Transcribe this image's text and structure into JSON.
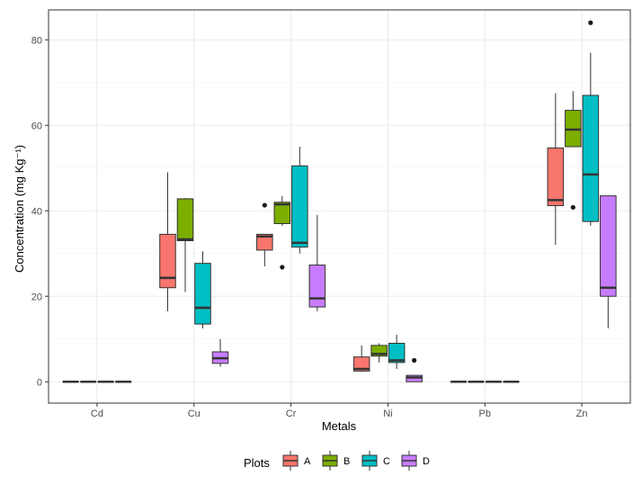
{
  "chart_data": {
    "type": "boxplot",
    "xlabel": "Metals",
    "ylabel": "Concentration (mg Kg⁻¹)",
    "ylim": [
      -5,
      87
    ],
    "y_ticks": [
      0,
      20,
      40,
      60,
      80
    ],
    "categories": [
      "Cd",
      "Cu",
      "Cr",
      "Ni",
      "Pb",
      "Zn"
    ],
    "grid": true,
    "legend": {
      "title": "Plots",
      "position": "bottom",
      "entries": [
        "A",
        "B",
        "C",
        "D"
      ]
    },
    "series": [
      {
        "name": "A",
        "color": "#F8766D",
        "boxes": [
          {
            "min": 0,
            "q1": 0,
            "median": 0,
            "q3": 0,
            "max": 0,
            "outliers": []
          },
          {
            "min": 16.5,
            "q1": 22,
            "median": 24.3,
            "q3": 34.5,
            "max": 49,
            "outliers": []
          },
          {
            "min": 27,
            "q1": 30.8,
            "median": 34,
            "q3": 34.5,
            "max": 34.5,
            "outliers": [
              41.3
            ]
          },
          {
            "min": 2.3,
            "q1": 2.5,
            "median": 3,
            "q3": 5.8,
            "max": 8.5,
            "outliers": []
          },
          {
            "min": 0,
            "q1": 0,
            "median": 0,
            "q3": 0,
            "max": 0,
            "outliers": []
          },
          {
            "min": 32,
            "q1": 41.2,
            "median": 42.5,
            "q3": 54.7,
            "max": 67.5,
            "outliers": []
          }
        ]
      },
      {
        "name": "B",
        "color": "#7CAE00",
        "boxes": [
          {
            "min": 0,
            "q1": 0,
            "median": 0,
            "q3": 0,
            "max": 0,
            "outliers": []
          },
          {
            "min": 21,
            "q1": 33,
            "median": 33.3,
            "q3": 42.8,
            "max": 43,
            "outliers": []
          },
          {
            "min": 36.5,
            "q1": 37,
            "median": 41.5,
            "q3": 42,
            "max": 43.5,
            "outliers": [
              26.8
            ]
          },
          {
            "min": 4.5,
            "q1": 6,
            "median": 6.5,
            "q3": 8.5,
            "max": 9,
            "outliers": []
          },
          {
            "min": 0,
            "q1": 0,
            "median": 0,
            "q3": 0,
            "max": 0,
            "outliers": []
          },
          {
            "min": 55,
            "q1": 55,
            "median": 59,
            "q3": 63.5,
            "max": 68,
            "outliers": [
              40.8
            ]
          }
        ]
      },
      {
        "name": "C",
        "color": "#00BFC4",
        "boxes": [
          {
            "min": 0,
            "q1": 0,
            "median": 0,
            "q3": 0,
            "max": 0,
            "outliers": []
          },
          {
            "min": 12.5,
            "q1": 13.5,
            "median": 17.3,
            "q3": 27.7,
            "max": 30.5,
            "outliers": []
          },
          {
            "min": 30,
            "q1": 31.5,
            "median": 32.5,
            "q3": 50.5,
            "max": 55,
            "outliers": []
          },
          {
            "min": 3,
            "q1": 4.5,
            "median": 5,
            "q3": 9,
            "max": 11,
            "outliers": []
          },
          {
            "min": 0,
            "q1": 0,
            "median": 0,
            "q3": 0,
            "max": 0,
            "outliers": []
          },
          {
            "min": 36.5,
            "q1": 37.5,
            "median": 48.5,
            "q3": 67,
            "max": 77,
            "outliers": [
              84
            ]
          }
        ]
      },
      {
        "name": "D",
        "color": "#C77CFF",
        "boxes": [
          {
            "min": 0,
            "q1": 0,
            "median": 0,
            "q3": 0,
            "max": 0,
            "outliers": []
          },
          {
            "min": 3.5,
            "q1": 4.3,
            "median": 5.5,
            "q3": 7,
            "max": 10,
            "outliers": []
          },
          {
            "min": 16.5,
            "q1": 17.5,
            "median": 19.5,
            "q3": 27.3,
            "max": 39,
            "outliers": []
          },
          {
            "min": 0,
            "q1": 0,
            "median": 1,
            "q3": 1.5,
            "max": 1.5,
            "outliers": [
              5
            ]
          },
          {
            "min": 0,
            "q1": 0,
            "median": 0,
            "q3": 0,
            "max": 0,
            "outliers": []
          },
          {
            "min": 12.5,
            "q1": 20,
            "median": 22,
            "q3": 43.5,
            "max": 43.5,
            "outliers": []
          }
        ]
      }
    ]
  }
}
